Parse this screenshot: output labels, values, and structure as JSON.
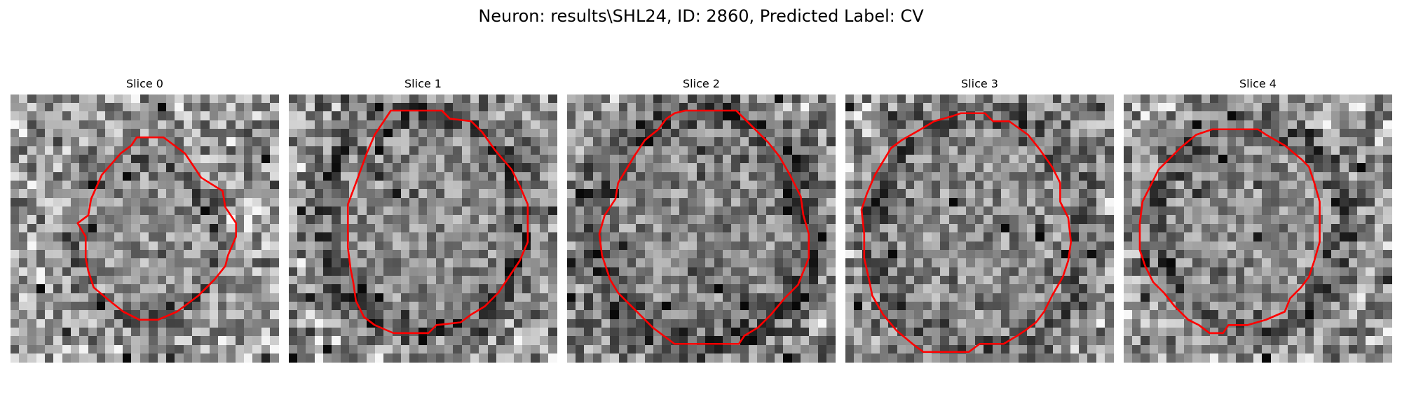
{
  "figure": {
    "title": "Neuron: results\\SHL24, ID: 2860, Predicted Label: CV"
  },
  "colors": {
    "contour": "#ff0000",
    "background": "#ffffff",
    "colormap": "grayscale"
  },
  "slices": [
    {
      "title": "Slice 0"
    },
    {
      "title": "Slice 1"
    },
    {
      "title": "Slice 2"
    },
    {
      "title": "Slice 3"
    },
    {
      "title": "Slice 4"
    }
  ]
}
